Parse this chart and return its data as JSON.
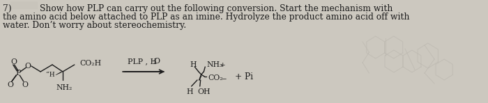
{
  "background_color": "#ccc8bf",
  "blank_box_color": "#c8c4bb",
  "text_line1": "Show how PLP can carry out the following conversion. Start the mechanism with",
  "text_line2": "the amino acid below attached to PLP as an imine. Hydrolyze the product amino acid off with",
  "text_line3": "water. Don’t worry about stereochemistry.",
  "reagent_label_1": "PLP , H",
  "reagent_label_2": "2",
  "reagent_label_3": "O",
  "plus_pi": "+ Pi",
  "font_size_text": 8.8,
  "font_size_chem": 7.8,
  "font_size_small": 6.5,
  "text_color": "#1c1c1c",
  "faded_color": "#b8b4ac",
  "line_color": "#1c1c1c",
  "line_width": 1.0
}
